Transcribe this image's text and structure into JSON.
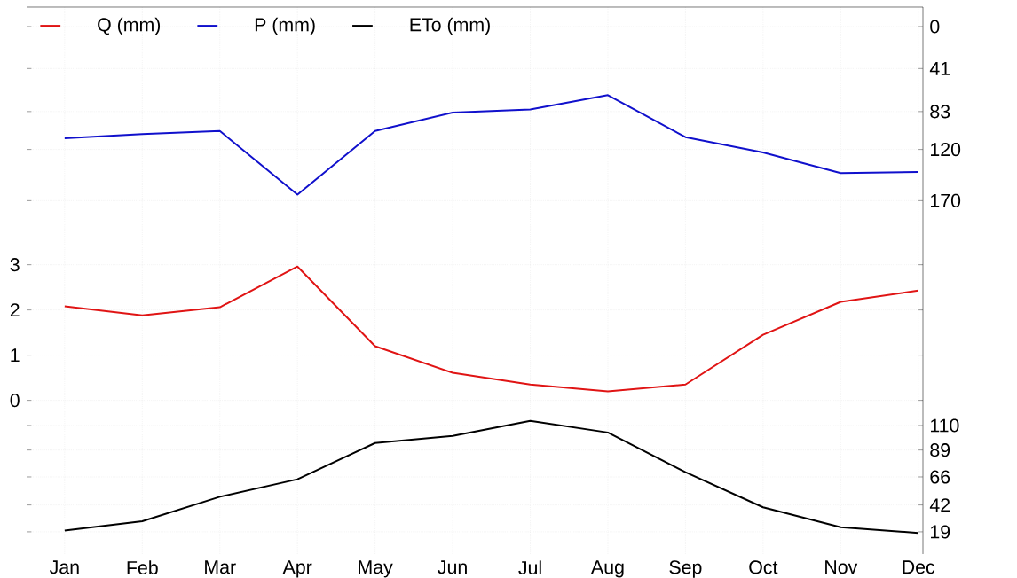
{
  "chart_data": {
    "type": "line",
    "categories": [
      "Jan",
      "Feb",
      "Mar",
      "Apr",
      "May",
      "Jun",
      "Jul",
      "Aug",
      "Sep",
      "Oct",
      "Nov",
      "Dec"
    ],
    "series": [
      {
        "name": "Q (mm)",
        "color": "#e01414",
        "values": [
          2.08,
          1.88,
          2.06,
          2.96,
          1.2,
          0.61,
          0.35,
          0.2,
          0.35,
          1.45,
          2.18,
          2.43
        ]
      },
      {
        "name": "P (mm)",
        "color": "#1010cc",
        "axis": "y2",
        "values": [
          109,
          105,
          102,
          164,
          102,
          84,
          81,
          67,
          108,
          123,
          143,
          142
        ]
      },
      {
        "name": "ETo (mm)",
        "color": "#000000",
        "axis": "y3",
        "values": [
          20,
          28,
          49,
          64,
          95,
          101,
          114,
          104,
          70,
          40,
          23,
          18
        ]
      }
    ],
    "ylim": [
      -3.4,
      8.7
    ],
    "yticks": [
      0,
      1,
      2,
      3
    ],
    "y2lim": [
      515,
      -19
    ],
    "y2ticks": [
      0,
      41,
      83,
      120,
      170
    ],
    "y3lim": [
      0,
      468
    ],
    "y3ticks": [
      19,
      42,
      66,
      89,
      110
    ],
    "grid": true,
    "legend": "top left",
    "marker": "none",
    "line_style": "solid"
  }
}
